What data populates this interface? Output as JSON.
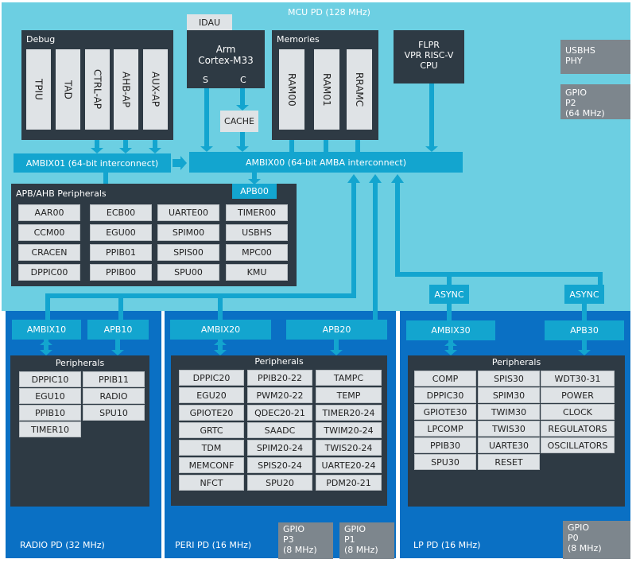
{
  "mcu": {
    "label": "MCU PD (128 MHz)",
    "idau": "IDAU",
    "cpu": {
      "line1": "Arm",
      "line2": "Cortex-M33",
      "s": "S",
      "c": "C"
    },
    "cache": "CACHE",
    "debug": {
      "title": "Debug",
      "items": [
        "TPIU",
        "TAD",
        "CTRL-AP",
        "AHB-AP",
        "AUX-AP"
      ]
    },
    "memories": {
      "title": "Memories",
      "items": [
        "RAM00",
        "RAM01",
        "RRAMC"
      ]
    },
    "flpr": {
      "line1": "FLPR",
      "line2": "VPR RISC-V",
      "line3": "CPU"
    },
    "usbhs_phy": {
      "line1": "USBHS",
      "line2": "PHY"
    },
    "gpio_p2": {
      "line1": "GPIO",
      "line2": "P2",
      "line3": "(64 MHz)"
    },
    "ambix01": "AMBIX01 (64-bit interconnect)",
    "ambix00": "AMBIX00 (64-bit AMBA interconnect)",
    "apb00": "APB00",
    "apb_ahb": {
      "title": "APB/AHB Peripherals",
      "items": [
        "AAR00",
        "ECB00",
        "UARTE00",
        "TIMER00",
        "CCM00",
        "EGU00",
        "SPIM00",
        "USBHS",
        "CRACEN",
        "PPIB01",
        "SPIS00",
        "MPC00",
        "DPPIC00",
        "PPIB00",
        "SPU00",
        "KMU"
      ]
    },
    "async": [
      "ASYNC",
      "ASYNC"
    ]
  },
  "radio": {
    "label": "RADIO PD (32 MHz)",
    "ambix": "AMBIX10",
    "apb": "APB10",
    "title": "Peripherals",
    "items": [
      "DPPIC10",
      "PPIB11",
      "EGU10",
      "RADIO",
      "PPIB10",
      "SPU10",
      "TIMER10"
    ]
  },
  "peri": {
    "label": "PERI PD (16 MHz)",
    "ambix": "AMBIX20",
    "apb": "APB20",
    "title": "Peripherals",
    "items": [
      "DPPIC20",
      "PPIB20-22",
      "TAMPC",
      "EGU20",
      "PWM20-22",
      "TEMP",
      "GPIOTE20",
      "QDEC20-21",
      "TIMER20-24",
      "GRTC",
      "SAADC",
      "TWIM20-24",
      "TDM",
      "SPIM20-24",
      "TWIS20-24",
      "MEMCONF",
      "SPIS20-24",
      "UARTE20-24",
      "NFCT",
      "SPU20",
      "PDM20-21"
    ],
    "gpio_p3": {
      "line1": "GPIO",
      "line2": "P3",
      "line3": "(8 MHz)"
    },
    "gpio_p1": {
      "line1": "GPIO",
      "line2": "P1",
      "line3": "(8 MHz)"
    }
  },
  "lp": {
    "label": "LP PD (16 MHz)",
    "ambix": "AMBIX30",
    "apb": "APB30",
    "title": "Peripherals",
    "items": [
      "COMP",
      "SPIS30",
      "WDT30-31",
      "DPPIC30",
      "SPIM30",
      "POWER",
      "GPIOTE30",
      "TWIM30",
      "CLOCK",
      "LPCOMP",
      "TWIS30",
      "REGULATORS",
      "PPIB30",
      "UARTE30",
      "OSCILLATORS",
      "SPU30",
      "RESET"
    ],
    "gpio_p0": {
      "line1": "GPIO",
      "line2": "P0",
      "line3": "(8 MHz)"
    }
  },
  "colors": {
    "mcu_bg": "#6ccfe2",
    "pd_bg": "#0a70c4",
    "bus": "#13a5cf",
    "dark": "#2e3a44",
    "gpio": "#7d868d"
  }
}
